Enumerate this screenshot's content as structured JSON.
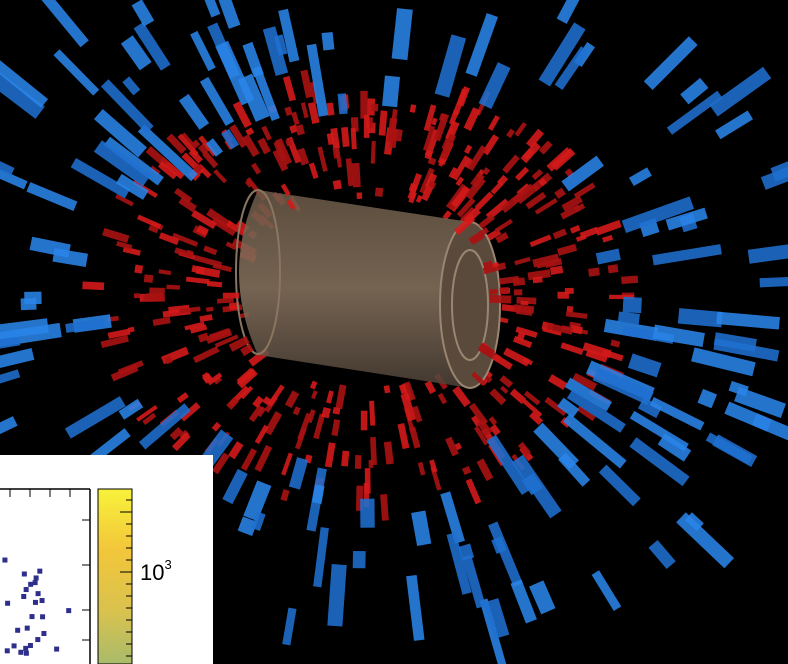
{
  "colorbar": {
    "label_base": "10",
    "label_exponent": "3"
  }
}
